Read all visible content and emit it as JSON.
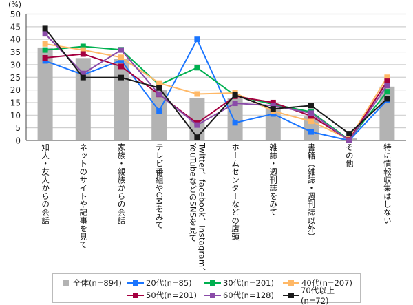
{
  "chart_data": {
    "type": "bar+line",
    "ylabel": "(%)",
    "ylim": [
      0,
      50
    ],
    "yticks": [
      0,
      5,
      10,
      15,
      20,
      25,
      30,
      35,
      40,
      45,
      50
    ],
    "grid": true,
    "legend_position": "bottom",
    "categories": [
      "知人・友人からの会話",
      "ネットのサイトや記事を見て",
      "家族・親族からの会話",
      "テレビ番組やCMをみて",
      "Twitter、facebook、Instagram、\nYouTubeなどのSNSを見て",
      "ホームセンターなどの店頭",
      "雑誌・週刊誌をみて",
      "書籍（雑誌・週刊誌以外）",
      "その他",
      "特に情報収集はしない"
    ],
    "bar_series": {
      "name": "全体(n=894)",
      "color": "#b3b3b3",
      "values": [
        36.8,
        32.6,
        32.3,
        20.0,
        16.9,
        16.6,
        12.8,
        9.5,
        0.8,
        21.3
      ]
    },
    "series": [
      {
        "name": "20代(n=85)",
        "color": "#1a75ff",
        "values": [
          31.5,
          26.0,
          31.7,
          11.7,
          40.0,
          7.0,
          10.5,
          3.4,
          0.0,
          16.0
        ]
      },
      {
        "name": "30代(n=201)",
        "color": "#00b050",
        "values": [
          35.8,
          37.2,
          35.9,
          22.0,
          28.8,
          17.8,
          14.3,
          11.3,
          0.3,
          19.3
        ]
      },
      {
        "name": "40代(n=207)",
        "color": "#ffb866",
        "values": [
          38.2,
          35.8,
          32.9,
          22.7,
          18.4,
          18.8,
          11.6,
          7.6,
          0.5,
          25.0
        ]
      },
      {
        "name": "50代(n=201)",
        "color": "#a50040",
        "values": [
          32.7,
          34.2,
          29.3,
          18.2,
          6.8,
          17.5,
          15.0,
          9.7,
          0.2,
          23.4
        ]
      },
      {
        "name": "60代(n=128)",
        "color": "#8a4ba8",
        "values": [
          42.2,
          26.5,
          35.8,
          18.3,
          6.1,
          14.7,
          13.8,
          10.8,
          0.0,
          21.8
        ]
      },
      {
        "name": "70代以上(n=72)",
        "color": "#1a1a1a",
        "values": [
          44.3,
          24.9,
          24.9,
          20.8,
          1.3,
          18.0,
          12.5,
          13.8,
          2.7,
          16.5
        ]
      }
    ]
  }
}
